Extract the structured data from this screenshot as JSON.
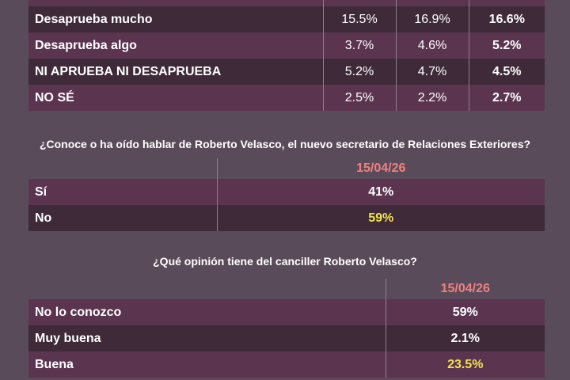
{
  "top_table": {
    "rows": [
      {
        "label": "Desaprueba mucho",
        "v1": "15.5%",
        "v2": "16.9%",
        "v3": "16.6%"
      },
      {
        "label": "Desaprueba algo",
        "v1": "3.7%",
        "v2": "4.6%",
        "v3": "5.2%"
      },
      {
        "label": "NI APRUEBA NI DESAPRUEBA",
        "v1": "5.2%",
        "v2": "4.7%",
        "v3": "4.5%"
      },
      {
        "label": "NO SÉ",
        "v1": "2.5%",
        "v2": "2.2%",
        "v3": "2.7%"
      }
    ]
  },
  "q2": {
    "question": "¿Conoce o ha oído hablar de Roberto Velasco, el nuevo secretario de Relaciones Exteriores?",
    "date": "15/04/26",
    "rows": [
      {
        "label": "Sí",
        "value": "41%"
      },
      {
        "label": "No",
        "value": "59%"
      }
    ]
  },
  "q3": {
    "question": "¿Qué opinión tiene del canciller Roberto Velasco?",
    "date": "15/04/26",
    "rows": [
      {
        "label": "No lo conozco",
        "value": "59%"
      },
      {
        "label": "Muy buena",
        "value": "2.1%"
      },
      {
        "label": "Buena",
        "value": "23.5%"
      }
    ]
  },
  "colors": {
    "background": "#5a4b5a",
    "row_light": "#5b3550",
    "row_dark": "#3e2a38",
    "highlight": "#f2e24a",
    "date": "#f08080"
  }
}
